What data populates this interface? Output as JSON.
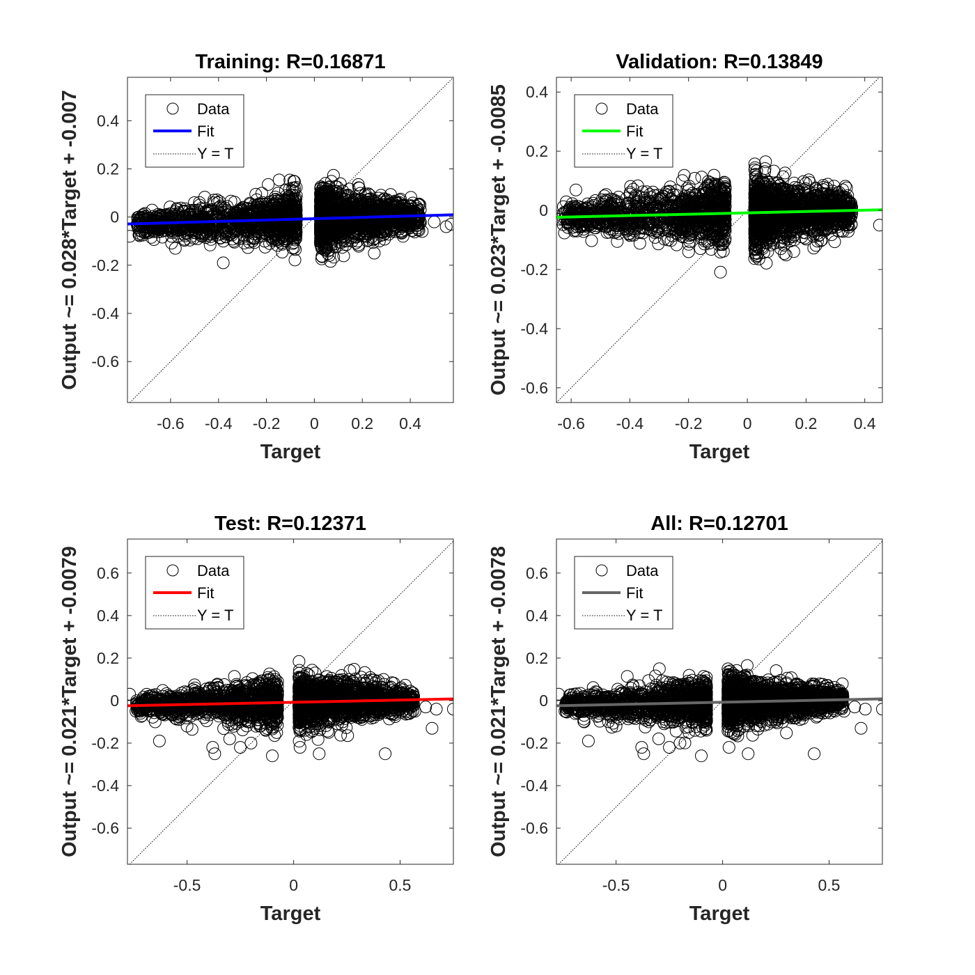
{
  "chart_data": [
    {
      "type": "scatter",
      "title": "Training: R=0.16871",
      "xlabel": "Target",
      "ylabel": "Output ~= 0.028*Target + -0.007",
      "xlim": [
        -0.78,
        0.58
      ],
      "ylim": [
        -0.77,
        0.58
      ],
      "xticks": [
        -0.6,
        -0.4,
        -0.2,
        0,
        0.2,
        0.4
      ],
      "xtick_labels": [
        "-0.6",
        "-0.4",
        "-0.2",
        "0",
        "0.2",
        "0.4"
      ],
      "yticks": [
        -0.6,
        -0.4,
        -0.2,
        0,
        0.2,
        0.4
      ],
      "ytick_labels": [
        "-0.6",
        "-0.4",
        "-0.2",
        "0",
        "0.2",
        "0.4"
      ],
      "fit_color": "#0000ff",
      "fit": {
        "slope": 0.028,
        "intercept": -0.007
      },
      "legend": {
        "position": "top-left",
        "entries": [
          "Data",
          "Fit",
          "Y = T"
        ]
      },
      "data_points": {
        "x": [
          -0.77,
          -0.74,
          -0.72,
          -0.68,
          -0.65,
          -0.6,
          -0.58,
          -0.55,
          -0.5,
          -0.47,
          -0.44,
          -0.42,
          -0.38,
          -0.36,
          -0.33,
          -0.3,
          -0.28,
          -0.25,
          -0.22,
          -0.2,
          -0.18,
          -0.15,
          -0.13,
          -0.11,
          -0.09,
          -0.08,
          -0.38,
          -0.57,
          0.03,
          0.05,
          0.07,
          0.09,
          0.11,
          0.13,
          0.15,
          0.18,
          0.2,
          0.23,
          0.26,
          0.3,
          0.33,
          0.37,
          0.41,
          0.45,
          0.5,
          0.55,
          0.57,
          0.25,
          0.18,
          0.06
        ],
        "y": [
          -0.08,
          -0.03,
          -0.06,
          -0.02,
          -0.04,
          0.0,
          -0.13,
          -0.05,
          -0.03,
          -0.08,
          0.0,
          -0.04,
          -0.1,
          -0.02,
          -0.05,
          0.01,
          -0.09,
          -0.03,
          0.0,
          -0.07,
          0.02,
          -0.1,
          -0.04,
          0.03,
          -0.11,
          -0.02,
          -0.19,
          -0.08,
          0.02,
          -0.08,
          0.08,
          -0.04,
          0.04,
          -0.1,
          0.0,
          -0.06,
          0.03,
          -0.07,
          -0.02,
          -0.05,
          0.01,
          -0.08,
          -0.03,
          -0.06,
          -0.02,
          -0.04,
          -0.03,
          -0.15,
          -0.1,
          0.09
        ]
      }
    },
    {
      "type": "scatter",
      "title": "Validation: R=0.13849",
      "xlabel": "Target",
      "ylabel": "Output ~= 0.023*Target + -0.0085",
      "xlim": [
        -0.65,
        0.46
      ],
      "ylim": [
        -0.65,
        0.45
      ],
      "xticks": [
        -0.6,
        -0.4,
        -0.2,
        0,
        0.2,
        0.4
      ],
      "xtick_labels": [
        "-0.6",
        "-0.4",
        "-0.2",
        "0",
        "0.2",
        "0.4"
      ],
      "yticks": [
        -0.6,
        -0.4,
        -0.2,
        0,
        0.2,
        0.4
      ],
      "ytick_labels": [
        "-0.6",
        "-0.4",
        "-0.2",
        "0",
        "0.2",
        "0.4"
      ],
      "fit_color": "#00ff00",
      "fit": {
        "slope": 0.023,
        "intercept": -0.0085
      },
      "legend": {
        "position": "top-left",
        "entries": [
          "Data",
          "Fit",
          "Y = T"
        ]
      },
      "data_points": {
        "x": [
          -0.64,
          -0.59,
          -0.58,
          -0.57,
          -0.45,
          -0.42,
          -0.4,
          -0.37,
          -0.35,
          -0.33,
          -0.3,
          -0.28,
          -0.27,
          -0.25,
          -0.22,
          -0.2,
          -0.2,
          -0.18,
          -0.16,
          -0.14,
          -0.12,
          -0.1,
          -0.09,
          -0.08,
          0.03,
          0.04,
          0.05,
          0.06,
          0.07,
          0.08,
          0.09,
          0.1,
          0.11,
          0.12,
          0.13,
          0.15,
          0.17,
          0.19,
          0.21,
          0.23,
          0.26,
          0.29,
          0.31,
          0.33,
          0.45
        ],
        "y": [
          -0.03,
          -0.07,
          -0.07,
          -0.01,
          -0.05,
          -0.01,
          -0.06,
          0.03,
          -0.02,
          -0.04,
          0.0,
          -0.02,
          -0.1,
          -0.05,
          0.01,
          -0.07,
          -0.14,
          0.02,
          -0.03,
          0.01,
          -0.05,
          0.02,
          -0.08,
          -0.02,
          0.05,
          -0.02,
          0.06,
          -0.04,
          0.02,
          -0.06,
          0.04,
          -0.01,
          -0.11,
          0.01,
          -0.08,
          0.03,
          -0.04,
          0.01,
          -0.02,
          -0.07,
          0.02,
          -0.03,
          -0.07,
          -0.04,
          -0.05
        ]
      }
    },
    {
      "type": "scatter",
      "title": "Test: R=0.12371",
      "xlabel": "Target",
      "ylabel": "Output ~= 0.021*Target + -0.0079",
      "xlim": [
        -0.78,
        0.75
      ],
      "ylim": [
        -0.77,
        0.76
      ],
      "xticks": [
        -0.5,
        0,
        0.5
      ],
      "xtick_labels": [
        "-0.5",
        "0",
        "0.5"
      ],
      "yticks": [
        -0.6,
        -0.4,
        -0.2,
        0,
        0.2,
        0.4,
        0.6
      ],
      "ytick_labels": [
        "-0.6",
        "-0.4",
        "-0.2",
        "0",
        "0.2",
        "0.4",
        "0.6"
      ],
      "fit_color": "#ff0000",
      "fit": {
        "slope": 0.021,
        "intercept": -0.0079
      },
      "legend": {
        "position": "top-left",
        "entries": [
          "Data",
          "Fit",
          "Y = T"
        ]
      },
      "data_points": {
        "x": [
          -0.77,
          -0.74,
          -0.7,
          -0.65,
          -0.63,
          -0.58,
          -0.55,
          -0.5,
          -0.45,
          -0.42,
          -0.38,
          -0.37,
          -0.35,
          -0.3,
          -0.28,
          -0.25,
          -0.22,
          -0.2,
          -0.16,
          -0.13,
          -0.1,
          -0.09,
          -0.08,
          0.03,
          0.04,
          0.06,
          0.08,
          0.1,
          0.12,
          0.15,
          0.18,
          0.2,
          0.23,
          0.26,
          0.3,
          0.33,
          0.38,
          0.43,
          0.47,
          0.52,
          0.57,
          0.62,
          0.65,
          0.67,
          0.75
        ],
        "y": [
          0.03,
          -0.05,
          -0.02,
          -0.1,
          -0.19,
          -0.06,
          0.01,
          -0.12,
          -0.04,
          -0.08,
          -0.22,
          -0.25,
          -0.05,
          -0.18,
          0.03,
          -0.22,
          -0.06,
          -0.2,
          0.04,
          -0.14,
          -0.26,
          0.05,
          0.08,
          -0.22,
          0.08,
          -0.16,
          0.06,
          -0.12,
          -0.25,
          0.05,
          -0.08,
          0.02,
          -0.1,
          -0.04,
          0.0,
          -0.07,
          -0.03,
          -0.25,
          -0.06,
          -0.02,
          -0.05,
          -0.03,
          -0.13,
          -0.04,
          -0.04
        ]
      }
    },
    {
      "type": "scatter",
      "title": "All: R=0.12701",
      "xlabel": "Target",
      "ylabel": "Output ~= 0.021*Target + -0.0078",
      "xlim": [
        -0.78,
        0.75
      ],
      "ylim": [
        -0.77,
        0.76
      ],
      "xticks": [
        -0.5,
        0,
        0.5
      ],
      "xtick_labels": [
        "-0.5",
        "0",
        "0.5"
      ],
      "yticks": [
        -0.6,
        -0.4,
        -0.2,
        0,
        0.2,
        0.4,
        0.6
      ],
      "ytick_labels": [
        "-0.6",
        "-0.4",
        "-0.2",
        "0",
        "0.2",
        "0.4",
        "0.6"
      ],
      "fit_color": "#666666",
      "fit": {
        "slope": 0.021,
        "intercept": -0.0078
      },
      "legend": {
        "position": "top-left",
        "entries": [
          "Data",
          "Fit",
          "Y = T"
        ]
      },
      "data_points": {
        "x": [
          -0.77,
          -0.74,
          -0.7,
          -0.65,
          -0.63,
          -0.58,
          -0.55,
          -0.5,
          -0.45,
          -0.42,
          -0.38,
          -0.37,
          -0.35,
          -0.3,
          -0.28,
          -0.25,
          -0.22,
          -0.2,
          -0.16,
          -0.13,
          -0.1,
          -0.09,
          -0.08,
          0.03,
          0.04,
          0.06,
          0.08,
          0.1,
          0.12,
          0.15,
          0.18,
          0.2,
          0.23,
          0.26,
          0.3,
          0.33,
          0.38,
          0.43,
          0.47,
          0.52,
          0.57,
          0.62,
          0.65,
          0.67,
          0.75
        ],
        "y": [
          0.03,
          -0.05,
          -0.02,
          -0.1,
          -0.19,
          -0.06,
          0.01,
          -0.12,
          -0.04,
          -0.08,
          -0.22,
          -0.25,
          -0.05,
          -0.18,
          0.03,
          -0.22,
          -0.06,
          -0.2,
          0.04,
          -0.14,
          -0.26,
          0.05,
          0.08,
          -0.22,
          0.08,
          -0.16,
          0.06,
          -0.12,
          -0.25,
          0.05,
          -0.08,
          0.02,
          -0.1,
          -0.04,
          0.0,
          -0.07,
          -0.03,
          -0.25,
          -0.06,
          -0.02,
          -0.05,
          -0.03,
          -0.13,
          -0.04,
          -0.04
        ]
      }
    }
  ]
}
